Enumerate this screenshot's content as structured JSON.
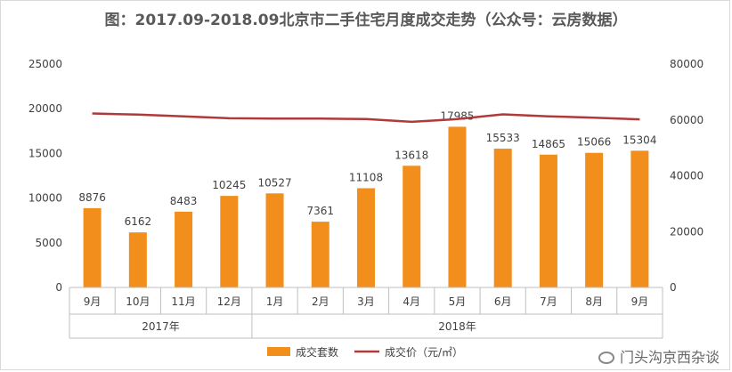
{
  "title": "图：2017.09-2018.09北京市二手住宅月度成交走势（公众号：云房数据）",
  "watermark": "门头沟京西杂谈",
  "watermark_icon": "wechat-icon",
  "chart_data": {
    "type": "bar",
    "categories": [
      "9月",
      "10月",
      "11月",
      "12月",
      "1月",
      "2月",
      "3月",
      "4月",
      "5月",
      "6月",
      "7月",
      "8月",
      "9月"
    ],
    "groups": [
      {
        "label": "2017年",
        "from": 0,
        "to": 3
      },
      {
        "label": "2018年",
        "from": 4,
        "to": 12
      }
    ],
    "series": [
      {
        "name": "成交套数",
        "type": "bar",
        "axis": "left",
        "color": "#f28e1c",
        "values": [
          8876,
          6162,
          8483,
          10245,
          10527,
          7361,
          11108,
          13618,
          17985,
          15533,
          14865,
          15066,
          15304
        ]
      },
      {
        "name": "成交价（元/㎡）",
        "type": "line",
        "axis": "right",
        "color": "#b03a3a",
        "values": [
          62300,
          61900,
          61300,
          60600,
          60500,
          60500,
          60300,
          59300,
          60300,
          62000,
          61300,
          60800,
          60200
        ]
      }
    ],
    "ylim": [
      0,
      25000
    ],
    "yticks": [
      0,
      5000,
      10000,
      15000,
      20000,
      25000
    ],
    "y2lim": [
      0,
      80000
    ],
    "y2ticks": [
      0,
      20000,
      40000,
      60000,
      80000
    ],
    "legend_position": "bottom",
    "grid": false
  }
}
